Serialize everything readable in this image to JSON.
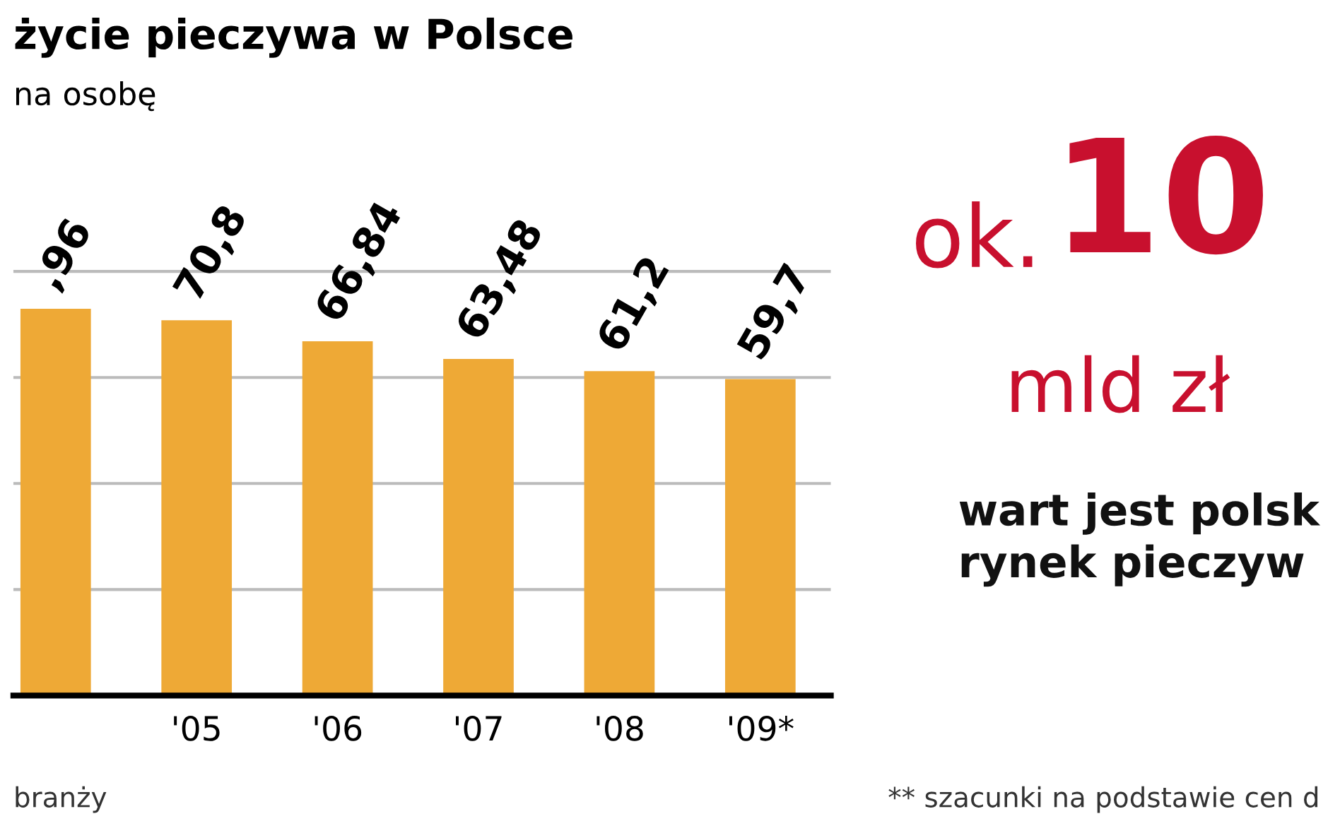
{
  "chart_data": {
    "type": "bar",
    "title": "życie pieczywa w Polsce",
    "subtitle": "na osobę",
    "categories": [
      null,
      "'05",
      "'06",
      "'07",
      "'08",
      "'09*"
    ],
    "values": [
      72.96,
      70.8,
      66.84,
      63.48,
      61.2,
      59.7
    ],
    "value_labels": [
      null,
      "70,8",
      "66,84",
      "63,48",
      "61,2",
      "59,7"
    ],
    "color": "#eea936",
    "grid": "y",
    "tick_labels": "x",
    "annotations": [
      {
        "text": ",96",
        "y": 72.96
      },
      "branży",
      "** szacunki na podstawie cen d",
      "ok.",
      "10",
      "mld zł",
      "wart jest polsk\nrynek pieczyw"
    ]
  }
}
